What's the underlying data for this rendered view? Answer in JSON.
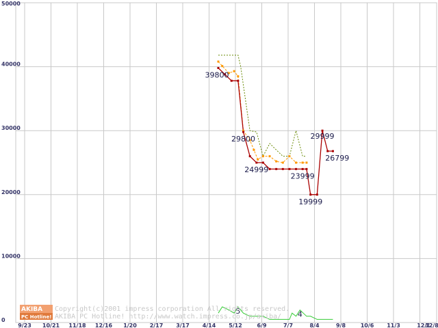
{
  "chart_data": {
    "type": "line",
    "x_ticks": [
      "9/23",
      "10/21",
      "11/18",
      "12/16",
      "1/20",
      "2/17",
      "3/17",
      "4/14",
      "5/12",
      "6/9",
      "7/7",
      "8/4",
      "9/8",
      "10/6",
      "11/3",
      "12/1",
      "12/8"
    ],
    "y_ticks": [
      "0",
      "10000",
      "20000",
      "30000",
      "40000",
      "50000"
    ],
    "ylim": [
      0,
      50000
    ],
    "grid": true,
    "colors": {
      "min_price": "#aa0000",
      "avg_price": "#ff9900",
      "max_price": "#668800",
      "shop_count": "#33cc33",
      "grid": "#c8c8c8"
    },
    "series": [
      {
        "key": "max_price",
        "style": "dotted",
        "points": [
          [
            7.35,
            41800
          ],
          [
            7.6,
            41800
          ],
          [
            7.85,
            41800
          ],
          [
            8.1,
            41800
          ],
          [
            8.2,
            40000
          ],
          [
            8.55,
            30000
          ],
          [
            8.8,
            29800
          ],
          [
            9.05,
            26000
          ],
          [
            9.3,
            28000
          ],
          [
            9.55,
            27000
          ],
          [
            9.8,
            26000
          ],
          [
            10.05,
            26000
          ],
          [
            10.3,
            30000
          ],
          [
            10.55,
            26000
          ],
          [
            10.7,
            26000
          ]
        ]
      },
      {
        "key": "avg_price",
        "style": "dashed",
        "points": [
          [
            7.35,
            40800
          ],
          [
            7.5,
            40100
          ],
          [
            7.75,
            39000
          ],
          [
            7.95,
            39300
          ],
          [
            8.1,
            38500
          ],
          [
            8.3,
            30000
          ],
          [
            8.55,
            28500
          ],
          [
            8.7,
            27000
          ],
          [
            8.85,
            25500
          ],
          [
            9.05,
            26000
          ],
          [
            9.3,
            26000
          ],
          [
            9.55,
            25200
          ],
          [
            9.8,
            25000
          ],
          [
            10.05,
            26000
          ],
          [
            10.3,
            25000
          ],
          [
            10.55,
            25000
          ],
          [
            10.7,
            25000
          ]
        ]
      },
      {
        "key": "min_price",
        "style": "solid",
        "points": [
          [
            7.35,
            39800
          ],
          [
            7.6,
            38800
          ],
          [
            7.85,
            37800
          ],
          [
            8.1,
            37800
          ],
          [
            8.3,
            29800
          ],
          [
            8.55,
            26000
          ],
          [
            8.8,
            24999
          ],
          [
            9.05,
            24999
          ],
          [
            9.3,
            24000
          ],
          [
            9.55,
            24000
          ],
          [
            9.8,
            24000
          ],
          [
            10.05,
            24000
          ],
          [
            10.3,
            24000
          ],
          [
            10.55,
            23999
          ],
          [
            10.7,
            23999
          ],
          [
            10.85,
            19999
          ],
          [
            11.1,
            19999
          ],
          [
            11.3,
            29999
          ],
          [
            11.5,
            26799
          ],
          [
            11.7,
            26799
          ]
        ]
      },
      {
        "key": "shop_count",
        "style": "solid",
        "axis": "count",
        "points": [
          [
            7.35,
            3
          ],
          [
            7.5,
            5
          ],
          [
            7.75,
            4
          ],
          [
            7.95,
            3
          ],
          [
            8.1,
            5
          ],
          [
            8.3,
            3
          ],
          [
            8.55,
            2
          ],
          [
            8.8,
            2
          ],
          [
            9.05,
            2
          ],
          [
            9.3,
            1
          ],
          [
            9.55,
            1
          ],
          [
            9.8,
            1
          ],
          [
            10.05,
            1
          ],
          [
            10.15,
            3
          ],
          [
            10.3,
            2
          ],
          [
            10.45,
            4
          ],
          [
            10.7,
            2
          ],
          [
            10.85,
            2
          ],
          [
            11.1,
            1
          ],
          [
            11.3,
            1
          ],
          [
            11.5,
            1
          ],
          [
            11.7,
            1
          ]
        ]
      }
    ],
    "data_labels": [
      {
        "text": "39800",
        "x": 7.35,
        "y": 39800,
        "anchor": "start-below"
      },
      {
        "text": "29800",
        "x": 8.3,
        "y": 29800,
        "anchor": "below"
      },
      {
        "text": "24999",
        "x": 8.8,
        "y": 24999,
        "anchor": "below"
      },
      {
        "text": "23999",
        "x": 10.55,
        "y": 23999,
        "anchor": "below"
      },
      {
        "text": "19999",
        "x": 10.85,
        "y": 19999,
        "anchor": "below"
      },
      {
        "text": "29999",
        "x": 11.3,
        "y": 29999,
        "anchor": "above"
      },
      {
        "text": "26799",
        "x": 11.5,
        "y": 26799,
        "anchor": "below-right"
      }
    ],
    "count_labels": [
      {
        "text": "5",
        "x": 8.1,
        "y": 5
      },
      {
        "text": "4",
        "x": 10.45,
        "y": 4
      }
    ]
  },
  "watermark": {
    "logo_top": "AKIBA",
    "logo_bottom": "PC Hotline!",
    "line1": "Copyright(c)2001 impress corporation All rights reserved.",
    "line2": "AKIBA PC Hotline!  http://www.watch.impress.co.jp/akiba/"
  }
}
